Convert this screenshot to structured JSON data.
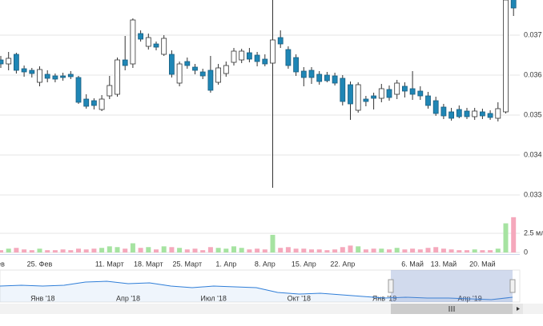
{
  "chart_data": [
    {
      "type": "candlestick",
      "categories": [
        "ев",
        null,
        null,
        null,
        null,
        "25. Фев",
        null,
        null,
        null,
        null,
        null,
        null,
        null,
        null,
        "11. Март",
        null,
        null,
        null,
        null,
        "18. Март",
        null,
        null,
        null,
        null,
        "25. Март",
        null,
        null,
        null,
        null,
        "1. Апр",
        null,
        null,
        null,
        null,
        "8. Апр",
        null,
        null,
        null,
        null,
        "15. Апр",
        null,
        null,
        null,
        null,
        "22. Апр",
        null,
        null,
        null,
        null,
        null,
        null,
        null,
        null,
        "6. Май",
        null,
        null,
        null,
        "13. Май",
        null,
        null,
        null,
        null,
        "20. Май",
        null,
        null,
        null,
        null
      ],
      "open": [
        0.03638,
        0.03628,
        0.03652,
        0.03616,
        0.03612,
        0.03582,
        0.03602,
        0.03598,
        0.03598,
        0.03602,
        0.03594,
        0.0354,
        0.03536,
        0.03514,
        0.03548,
        0.03552,
        0.03638,
        0.03628,
        0.03704,
        0.03672,
        0.03678,
        0.03652,
        0.03652,
        0.0358,
        0.03634,
        0.0362,
        0.03608,
        0.03612,
        0.03582,
        0.03604,
        0.03632,
        0.03638,
        0.03656,
        0.0365,
        0.0364,
        0.0363,
        0.03694,
        0.03664,
        0.03644,
        0.0361,
        0.03612,
        0.03602,
        0.036,
        0.03598,
        0.03592,
        0.03576,
        0.03512,
        0.0354,
        0.03548,
        0.03542,
        0.03564,
        0.03552,
        0.03572,
        0.03566,
        0.0356,
        0.03548,
        0.03536,
        0.0352,
        0.03508,
        0.03514,
        0.0351,
        0.03496,
        0.03508,
        0.03504,
        0.03492,
        0.03508,
        0.03798
      ],
      "high": [
        0.03648,
        0.03658,
        0.03656,
        0.03624,
        0.03618,
        0.03622,
        0.03612,
        0.03604,
        0.03606,
        0.0361,
        0.03598,
        0.03552,
        0.03542,
        0.0355,
        0.03598,
        0.03644,
        0.03698,
        0.03742,
        0.03712,
        0.03704,
        0.03684,
        0.037,
        0.03662,
        0.03634,
        0.03644,
        0.03628,
        0.03616,
        0.03648,
        0.03628,
        0.03634,
        0.03668,
        0.03666,
        0.03668,
        0.03658,
        0.03652,
        0.03788,
        0.03712,
        0.03672,
        0.03652,
        0.0362,
        0.0362,
        0.0361,
        0.03608,
        0.03606,
        0.036,
        0.03584,
        0.03582,
        0.03548,
        0.03556,
        0.03578,
        0.03574,
        0.03588,
        0.03582,
        0.0361,
        0.03572,
        0.03558,
        0.03546,
        0.03528,
        0.03518,
        0.03524,
        0.03518,
        0.03518,
        0.03516,
        0.03512,
        0.03532,
        0.03808,
        0.03808
      ],
      "low": [
        0.03618,
        0.03612,
        0.03604,
        0.03596,
        0.03594,
        0.03572,
        0.03582,
        0.03582,
        0.03586,
        0.0359,
        0.03528,
        0.03516,
        0.03514,
        0.0351,
        0.0354,
        0.03546,
        0.03612,
        0.03618,
        0.03684,
        0.03664,
        0.03662,
        0.03648,
        0.03594,
        0.03572,
        0.03616,
        0.03602,
        0.0359,
        0.03556,
        0.03576,
        0.03596,
        0.03624,
        0.0363,
        0.03632,
        0.03622,
        0.03622,
        0.03318,
        0.03668,
        0.03616,
        0.03598,
        0.03572,
        0.03578,
        0.03576,
        0.03582,
        0.03574,
        0.03524,
        0.03488,
        0.03506,
        0.03522,
        0.03514,
        0.03532,
        0.03536,
        0.0354,
        0.03544,
        0.03538,
        0.03538,
        0.03516,
        0.03498,
        0.0349,
        0.03486,
        0.03492,
        0.0349,
        0.03488,
        0.0349,
        0.03488,
        0.03484,
        0.03504,
        0.03748
      ],
      "close": [
        0.03628,
        0.03642,
        0.03612,
        0.03608,
        0.03604,
        0.03614,
        0.03592,
        0.0359,
        0.03594,
        0.03596,
        0.03532,
        0.03522,
        0.03524,
        0.0354,
        0.03574,
        0.03638,
        0.03624,
        0.03738,
        0.0369,
        0.03694,
        0.0367,
        0.03692,
        0.03602,
        0.03628,
        0.03624,
        0.03612,
        0.03598,
        0.03562,
        0.03618,
        0.03624,
        0.0366,
        0.0366,
        0.0364,
        0.03634,
        0.03628,
        0.03688,
        0.03678,
        0.03624,
        0.03608,
        0.03594,
        0.03594,
        0.03584,
        0.03586,
        0.0358,
        0.03534,
        0.03528,
        0.03576,
        0.03534,
        0.03542,
        0.03566,
        0.03544,
        0.0358,
        0.0356,
        0.03552,
        0.03548,
        0.03524,
        0.03504,
        0.03498,
        0.03492,
        0.03496,
        0.03496,
        0.0351,
        0.03498,
        0.03494,
        0.03516,
        0.03788,
        0.03768
      ],
      "up_color": "#ffffff",
      "down_color": "#1f86b5",
      "wick_color": "#333333",
      "ylim": [
        0.0328,
        0.03788
      ],
      "yticks": [
        0.033,
        0.034,
        0.035,
        0.036,
        0.037
      ],
      "grid": true
    },
    {
      "type": "bar",
      "values": [
        300000,
        500000,
        600000,
        400000,
        300000,
        500000,
        300000,
        300000,
        400000,
        300000,
        500000,
        400000,
        500000,
        600000,
        800000,
        700000,
        500000,
        1200000,
        600000,
        700000,
        400000,
        800000,
        700000,
        600000,
        400000,
        500000,
        300000,
        700000,
        600000,
        500000,
        800000,
        600000,
        400000,
        500000,
        400000,
        2300000,
        600000,
        700000,
        500000,
        500000,
        400000,
        400000,
        300000,
        400000,
        700000,
        900000,
        800000,
        400000,
        500000,
        500000,
        400000,
        600000,
        400000,
        500000,
        400000,
        600000,
        700000,
        500000,
        400000,
        300000,
        300000,
        400000,
        300000,
        300000,
        500000,
        3800000,
        4600000
      ],
      "up_color": "#a6e3a1",
      "down_color": "#f5a8bc",
      "ylim": [
        0,
        5000000
      ],
      "yticks": [
        0,
        {
          "value": 2500000,
          "label": "2.5 мл"
        }
      ],
      "grid": true
    },
    {
      "type": "line",
      "categories": [
        null,
        null,
        "Янв '18",
        null,
        null,
        null,
        "Апр '18",
        null,
        null,
        null,
        "Июл '18",
        null,
        null,
        null,
        "Окт '18",
        null,
        null,
        null,
        "Янв '19",
        null,
        null,
        null,
        "Апр '19",
        null,
        null
      ],
      "values": [
        0.04055,
        0.04085,
        0.04055,
        0.04085,
        0.04207,
        0.04237,
        0.04146,
        0.04176,
        0.04055,
        0.03995,
        0.04055,
        0.04025,
        0.03995,
        0.03813,
        0.03752,
        0.03783,
        0.03722,
        0.03662,
        0.03601,
        0.03632,
        0.03601,
        0.03601,
        0.03571,
        0.03541,
        0.03632
      ],
      "color": "#2f7ed8",
      "ylim": [
        0.0345,
        0.046
      ]
    }
  ]
}
